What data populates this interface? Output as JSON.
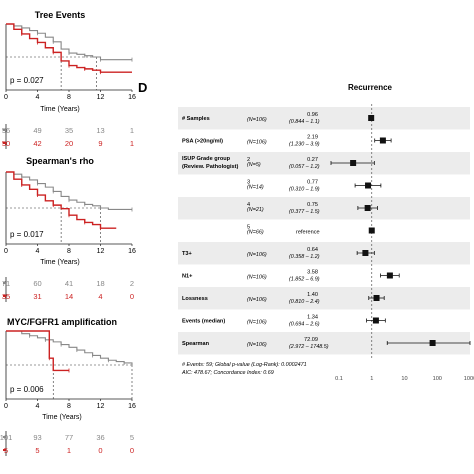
{
  "panel_letter": "D",
  "chart_data": [
    {
      "type": "line",
      "subtype": "kaplan-meier",
      "title": "Tree Events",
      "xlabel": "Time (Years)",
      "ylabel": "",
      "xlim": [
        0,
        16
      ],
      "xticks": [
        "0",
        "4",
        "8",
        "12",
        "16"
      ],
      "pvalue_label": "p = 0.027",
      "median_times": [
        7,
        11.5
      ],
      "series": [
        {
          "name": "",
          "color": "#888888",
          "steps": [
            [
              0,
              1
            ],
            [
              1,
              0.97
            ],
            [
              2,
              0.94
            ],
            [
              3,
              0.9
            ],
            [
              4,
              0.86
            ],
            [
              5,
              0.8
            ],
            [
              6,
              0.73
            ],
            [
              7,
              0.62
            ],
            [
              8,
              0.56
            ],
            [
              9,
              0.54
            ],
            [
              10,
              0.52
            ],
            [
              11,
              0.5
            ],
            [
              12,
              0.46
            ],
            [
              14,
              0.46
            ],
            [
              16,
              0.46
            ]
          ]
        },
        {
          "name": "",
          "color": "#cc2222",
          "steps": [
            [
              0,
              1
            ],
            [
              1,
              0.92
            ],
            [
              2,
              0.85
            ],
            [
              3,
              0.78
            ],
            [
              4,
              0.72
            ],
            [
              5,
              0.64
            ],
            [
              6,
              0.57
            ],
            [
              7,
              0.44
            ],
            [
              8,
              0.37
            ],
            [
              9,
              0.34
            ],
            [
              10,
              0.32
            ],
            [
              11,
              0.3
            ],
            [
              12,
              0.27
            ],
            [
              16,
              0.27
            ]
          ]
        }
      ],
      "risk_table": [
        {
          "color": "#888888",
          "values": [
            "56",
            "49",
            "35",
            "13",
            "1"
          ]
        },
        {
          "color": "#cc2222",
          "values": [
            "50",
            "42",
            "20",
            "9",
            "1"
          ]
        }
      ]
    },
    {
      "type": "line",
      "subtype": "kaplan-meier",
      "title": "Spearman's rho",
      "xlabel": "Time (Years)",
      "ylabel": "",
      "xlim": [
        0,
        16
      ],
      "xticks": [
        "0",
        "4",
        "8",
        "12",
        "16"
      ],
      "pvalue_label": "p = 0.017",
      "median_times": [
        7,
        12
      ],
      "series": [
        {
          "name": "",
          "color": "#888888",
          "steps": [
            [
              0,
              1
            ],
            [
              1,
              0.97
            ],
            [
              2,
              0.93
            ],
            [
              3,
              0.89
            ],
            [
              4,
              0.84
            ],
            [
              5,
              0.79
            ],
            [
              6,
              0.73
            ],
            [
              7,
              0.66
            ],
            [
              8,
              0.61
            ],
            [
              9,
              0.58
            ],
            [
              10,
              0.55
            ],
            [
              11,
              0.53
            ],
            [
              12,
              0.5
            ],
            [
              13,
              0.48
            ],
            [
              16,
              0.48
            ]
          ]
        },
        {
          "name": "",
          "color": "#cc2222",
          "steps": [
            [
              0,
              1
            ],
            [
              1,
              0.9
            ],
            [
              2,
              0.82
            ],
            [
              3,
              0.76
            ],
            [
              4,
              0.68
            ],
            [
              5,
              0.6
            ],
            [
              6,
              0.54
            ],
            [
              7,
              0.49
            ],
            [
              8,
              0.4
            ],
            [
              9,
              0.34
            ],
            [
              10,
              0.3
            ],
            [
              11,
              0.27
            ],
            [
              12,
              0.22
            ],
            [
              14,
              0.22
            ]
          ]
        }
      ],
      "risk_table": [
        {
          "color": "#888888",
          "values": [
            "71",
            "60",
            "41",
            "18",
            "2"
          ]
        },
        {
          "color": "#cc2222",
          "values": [
            "35",
            "31",
            "14",
            "4",
            "0"
          ]
        }
      ]
    },
    {
      "type": "line",
      "subtype": "kaplan-meier",
      "title": "MYC/FGFR1 amplification",
      "xlabel": "Time (Years)",
      "ylabel": "",
      "xlim": [
        0,
        16
      ],
      "xticks": [
        "0",
        "4",
        "8",
        "12",
        "16"
      ],
      "pvalue_label": "p = 0.006",
      "median_times": [
        16,
        6
      ],
      "series": [
        {
          "name": "",
          "color": "#888888",
          "steps": [
            [
              0,
              1
            ],
            [
              2,
              0.96
            ],
            [
              3,
              0.93
            ],
            [
              4,
              0.9
            ],
            [
              5,
              0.87
            ],
            [
              6,
              0.84
            ],
            [
              7,
              0.8
            ],
            [
              8,
              0.76
            ],
            [
              9,
              0.72
            ],
            [
              10,
              0.68
            ],
            [
              11,
              0.64
            ],
            [
              12,
              0.6
            ],
            [
              13,
              0.57
            ],
            [
              14,
              0.55
            ],
            [
              15,
              0.53
            ],
            [
              16,
              0.49
            ]
          ]
        },
        {
          "name": "",
          "color": "#cc2222",
          "steps": [
            [
              0,
              1
            ],
            [
              5,
              1
            ],
            [
              5.5,
              0.6
            ],
            [
              6,
              0.42
            ],
            [
              8,
              0.42
            ]
          ]
        }
      ],
      "risk_table": [
        {
          "color": "#888888",
          "values": [
            "101",
            "93",
            "77",
            "36",
            "5"
          ]
        },
        {
          "color": "#cc2222",
          "values": [
            "5",
            "5",
            "1",
            "0",
            "0"
          ]
        }
      ]
    },
    {
      "type": "forest",
      "title": "Recurrence",
      "xscale": "log",
      "xlim": [
        0.1,
        1000
      ],
      "xticks": [
        "0.1",
        "1",
        "10",
        "100",
        "1000"
      ],
      "reference_line": 1,
      "rows": [
        {
          "name": "# Samples",
          "n": "(N=106)",
          "hr": "0.96",
          "ci": "(0.844 – 1.1)",
          "value": 0.96,
          "lo": 0.844,
          "hi": 1.1
        },
        {
          "name": "PSA (>20ng/ml)",
          "n": "(N=106)",
          "hr": "2.19",
          "ci": "(1.230 – 3.9)",
          "value": 2.19,
          "lo": 1.23,
          "hi": 3.9
        },
        {
          "name": "ISUP Grade group (Review. Pathologist)",
          "level": "2",
          "n": "(N=5)",
          "hr": "0.27",
          "ci": "(0.057 – 1.2)",
          "value": 0.27,
          "lo": 0.057,
          "hi": 1.2
        },
        {
          "name": "",
          "level": "3",
          "n": "(N=14)",
          "hr": "0.77",
          "ci": "(0.310 – 1.9)",
          "value": 0.77,
          "lo": 0.31,
          "hi": 1.9
        },
        {
          "name": "",
          "level": "4",
          "n": "(N=21)",
          "hr": "0.75",
          "ci": "(0.377 – 1.5)",
          "value": 0.75,
          "lo": 0.377,
          "hi": 1.5
        },
        {
          "name": "",
          "level": "5",
          "n": "(N=66)",
          "hr": "reference",
          "ci": "",
          "value": 1,
          "lo": null,
          "hi": null
        },
        {
          "name": "T3+",
          "n": "(N=106)",
          "hr": "0.64",
          "ci": "(0.358 – 1.2)",
          "value": 0.64,
          "lo": 0.358,
          "hi": 1.2
        },
        {
          "name": "N1+",
          "n": "(N=106)",
          "hr": "3.58",
          "ci": "(1.852 – 6.9)",
          "value": 3.58,
          "lo": 1.852,
          "hi": 6.9
        },
        {
          "name": "Lossness",
          "n": "(N=106)",
          "hr": "1.40",
          "ci": "(0.810 – 2.4)",
          "value": 1.4,
          "lo": 0.81,
          "hi": 2.4
        },
        {
          "name": "Events (median)",
          "n": "(N=106)",
          "hr": "1.34",
          "ci": "(0.694 – 2.6)",
          "value": 1.34,
          "lo": 0.694,
          "hi": 2.6
        },
        {
          "name": "Spearman",
          "n": "(N=106)",
          "hr": "72.09",
          "ci": "(2.972 – 1748.5)",
          "value": 72.09,
          "lo": 2.972,
          "hi": 1748.5
        }
      ],
      "footnote_1": "# Events: 59; Global p-value (Log-Rank): 0.0002471",
      "footnote_2": "AIC: 478.67; Concordance Index: 0.69"
    }
  ]
}
